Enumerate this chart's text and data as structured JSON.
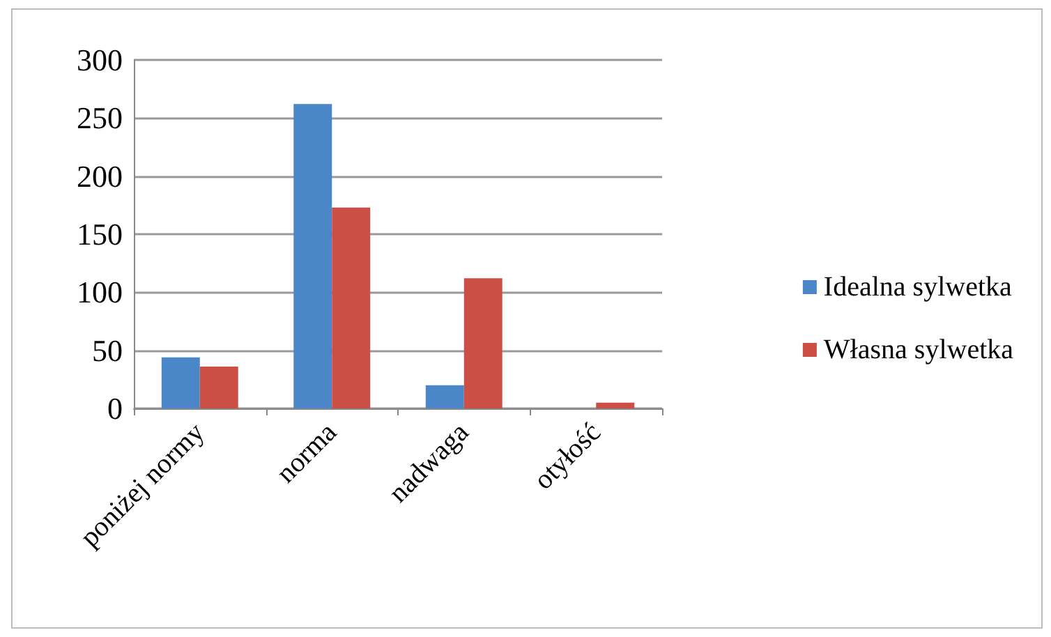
{
  "chart_data": {
    "type": "bar",
    "categories": [
      "poniżej normy",
      "norma",
      "nadwaga",
      "otyłość"
    ],
    "series": [
      {
        "name": "Idealna sylwetka",
        "color": "#4a86c8",
        "values": [
          44,
          262,
          20,
          0
        ]
      },
      {
        "name": "Własna sylwetka",
        "color": "#cc4f45",
        "values": [
          36,
          173,
          112,
          5
        ]
      }
    ],
    "ylim": [
      0,
      300
    ],
    "yticks": [
      0,
      50,
      100,
      150,
      200,
      250,
      300
    ],
    "grid": "y",
    "legend": "right"
  }
}
